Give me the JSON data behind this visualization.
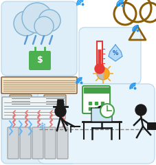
{
  "bg": "#ffffff",
  "lb_color": "#ddeef8",
  "lb_edge": "#b8d4e8",
  "sensor_color": "#e8f4fb",
  "occupant_color": "#e8f4fb",
  "wifi_color": "#2196F3",
  "rain_color": "#5b9bd5",
  "cloud_color": "#7fb3d3",
  "cloud_fill": "#cfe2f0",
  "brown": "#8B5E0A",
  "plug_green": "#4caf50",
  "therm_red": "#e53935",
  "drop_blue": "#90caf9",
  "sun_yellow": "#f9a825",
  "sun_gray": "#bdbdbd",
  "cal_green": "#43a047",
  "snow_blue": "#64b5f6",
  "ac_gray": "#90a4ae",
  "rad_gray": "#b0bec5",
  "heat_orange": "#e57373",
  "black": "#1a1a1a",
  "dashed_gray": "#888888"
}
